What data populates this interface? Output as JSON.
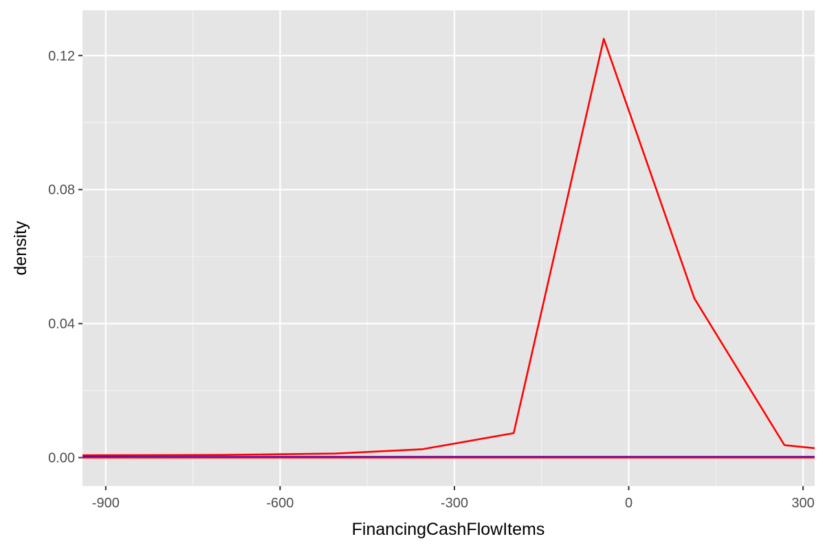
{
  "chart_data": {
    "type": "line",
    "title": "",
    "xlabel": "FinancingCashFlowItems",
    "ylabel": "density",
    "xlim": [
      -940,
      320
    ],
    "ylim": [
      -0.0085,
      0.1335
    ],
    "x_ticks": [
      -900,
      -600,
      -300,
      0,
      300
    ],
    "x_tick_labels": [
      "-900",
      "-600",
      "-300",
      "0",
      "300"
    ],
    "y_ticks": [
      0.0,
      0.04,
      0.08,
      0.12
    ],
    "y_tick_labels": [
      "0.00",
      "0.04",
      "0.08",
      "0.12"
    ],
    "grid": true,
    "legend": "none",
    "series": [
      {
        "color": "#ff0000",
        "points": [
          [
            -940,
            0.0007
          ],
          [
            -700,
            0.0008
          ],
          [
            -600,
            0.001
          ],
          [
            -505,
            0.0012
          ],
          [
            -355,
            0.0025
          ],
          [
            -198,
            0.0073
          ],
          [
            -43,
            0.125
          ],
          [
            113,
            0.0475
          ],
          [
            268,
            0.0037
          ],
          [
            320,
            0.0028
          ]
        ]
      },
      {
        "color": "#0000ff",
        "points": [
          [
            -940,
            0.0002
          ],
          [
            320,
            0.0002
          ]
        ]
      },
      {
        "color": "#ff0000",
        "points": [
          [
            -940,
            0.0
          ],
          [
            320,
            0.0
          ]
        ]
      }
    ]
  }
}
